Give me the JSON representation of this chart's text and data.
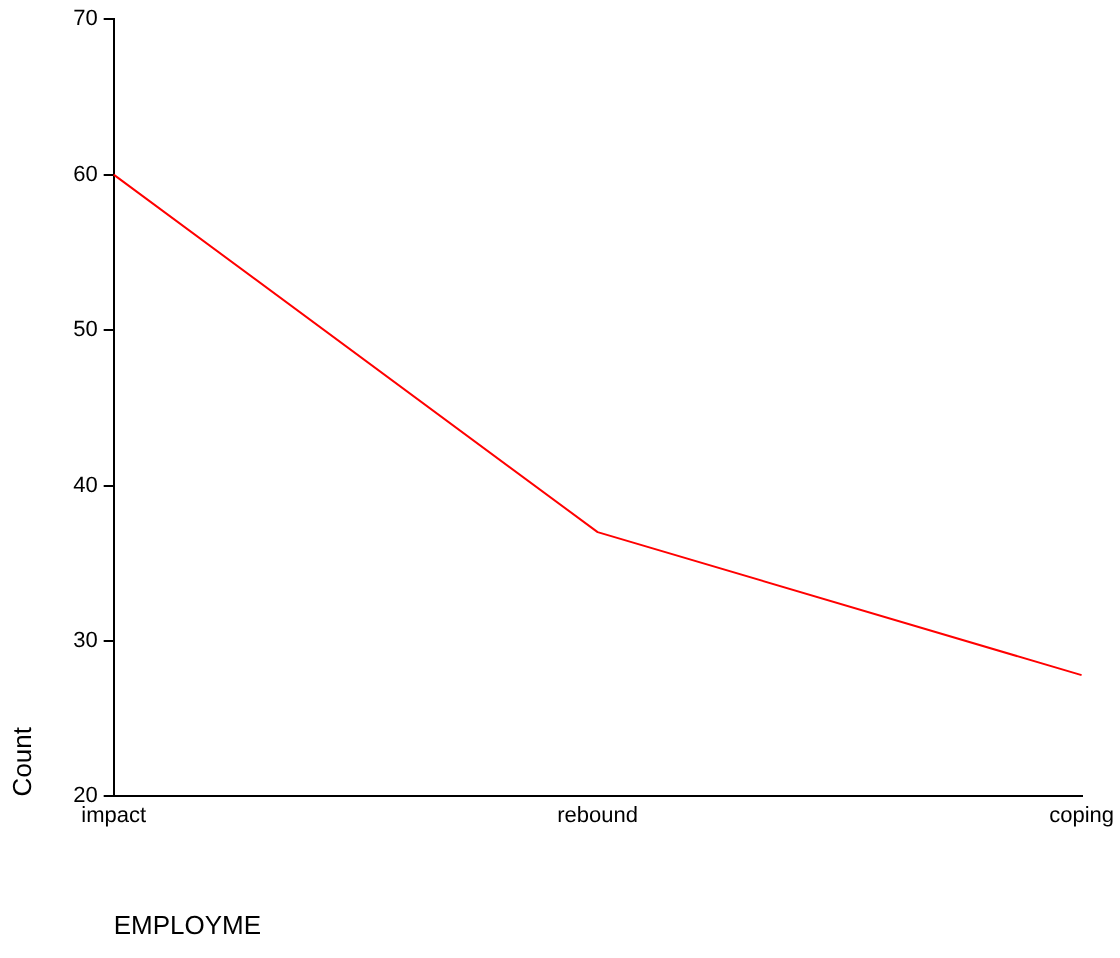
{
  "chart_data": {
    "type": "line",
    "ylabel": "Count",
    "xlabel": "EMPLOYME",
    "categories": [
      "impact",
      "rebound",
      "coping"
    ],
    "series": [
      {
        "color": "#ff0000",
        "values": [
          60,
          37,
          27.8
        ]
      }
    ],
    "ylim": [
      20,
      70
    ],
    "yticks": [
      20,
      30,
      40,
      50,
      60,
      70
    ],
    "grid": false,
    "legend": false,
    "marker": "none",
    "line_style": "solid"
  }
}
